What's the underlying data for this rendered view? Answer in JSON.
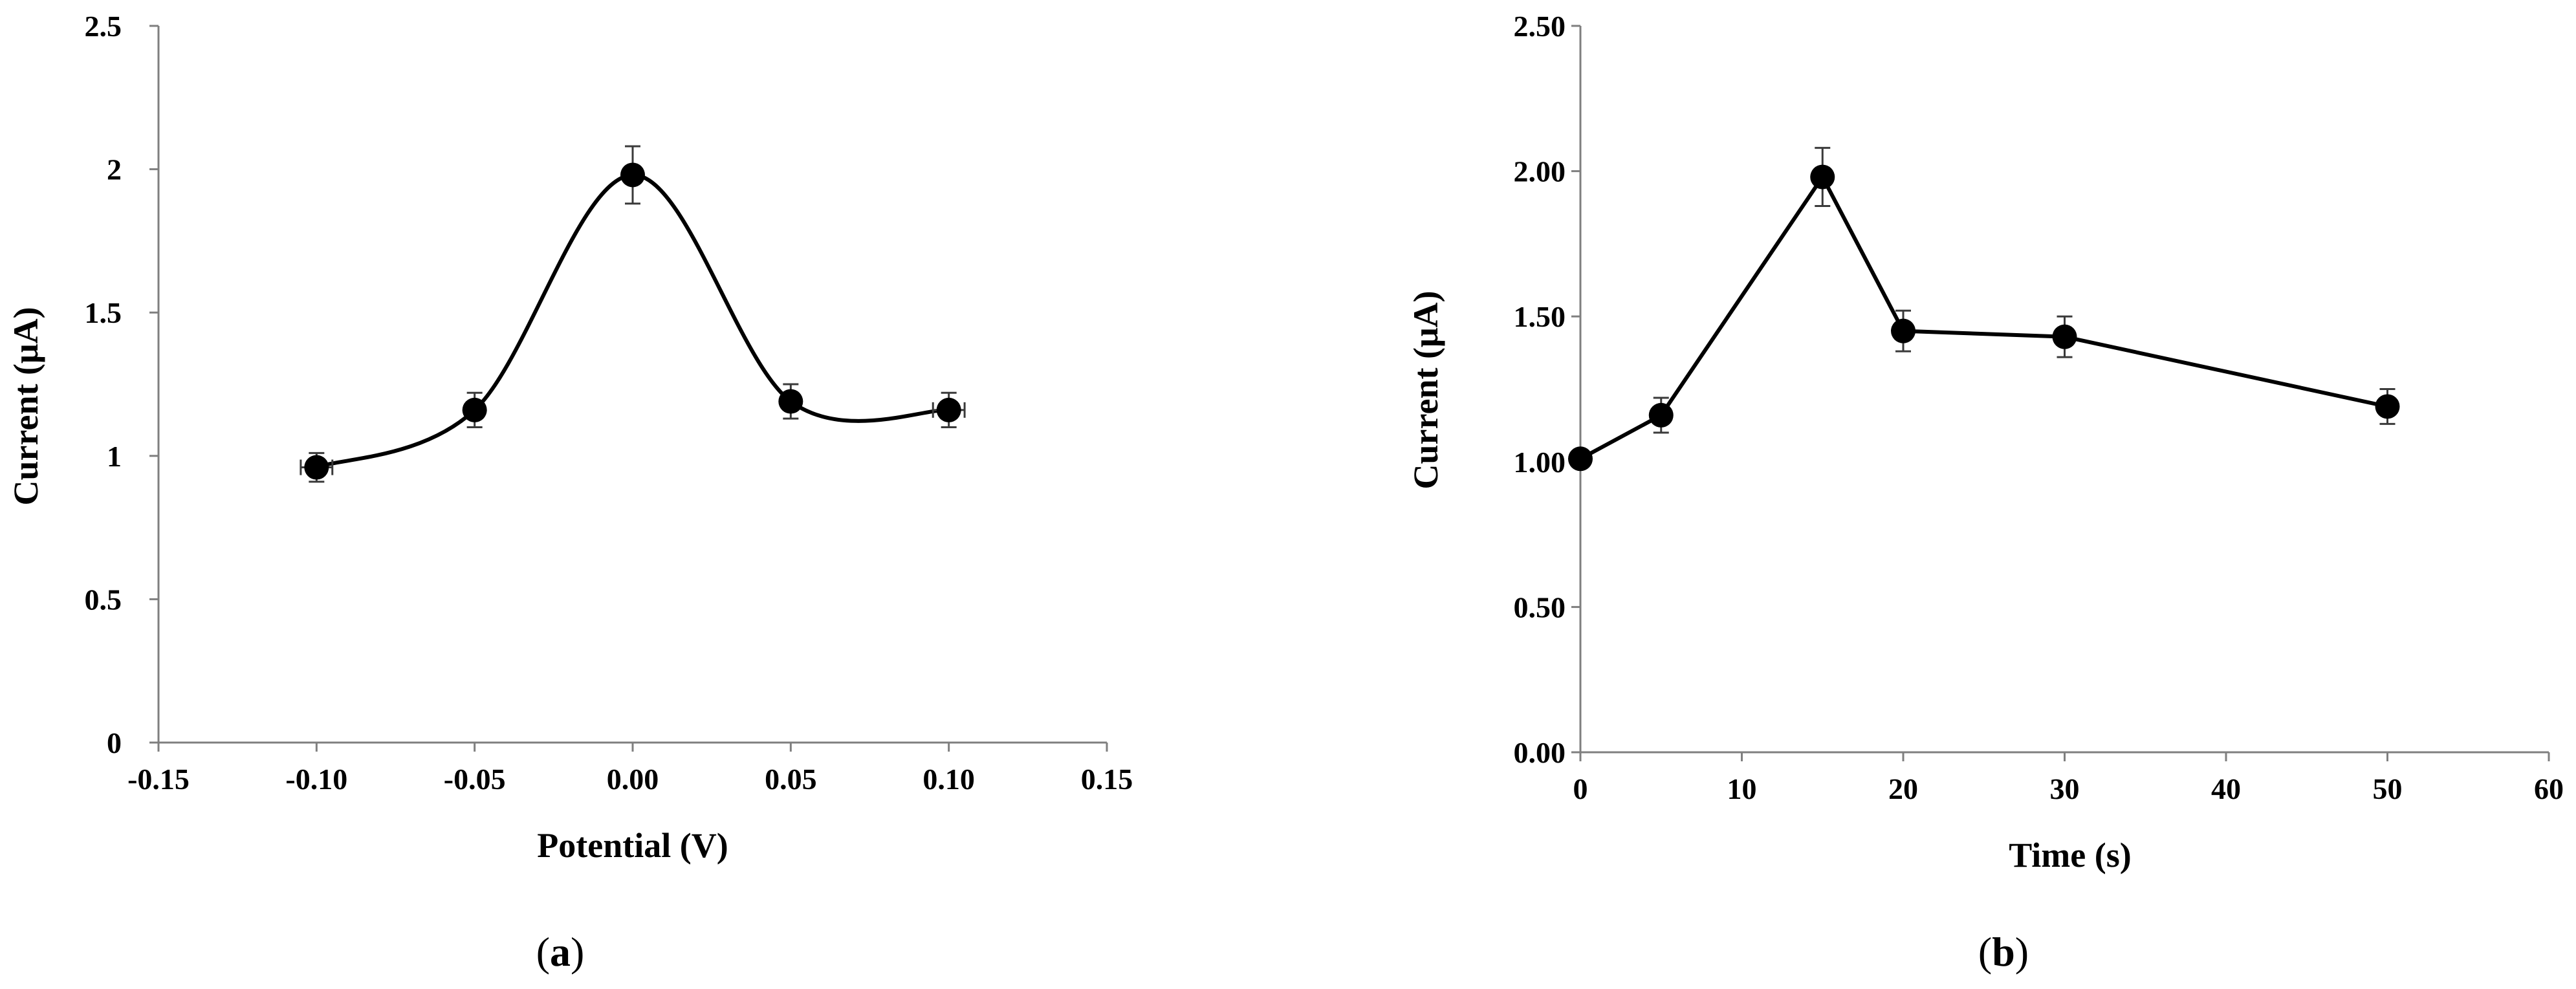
{
  "chart_data": [
    {
      "panel": "a",
      "type": "scatter",
      "line_style": "smooth",
      "xlabel": "Potential (V)",
      "ylabel": "Current (μA)",
      "xlim": [
        -0.15,
        0.15
      ],
      "ylim": [
        0,
        2.5
      ],
      "xticks": [
        -0.15,
        -0.1,
        -0.05,
        0.0,
        0.05,
        0.1,
        0.15
      ],
      "xtick_labels": [
        "-0.15",
        "-0.10",
        "-0.05",
        "0.00",
        "0.05",
        "0.10",
        "0.15"
      ],
      "yticks": [
        0,
        0.5,
        1,
        1.5,
        2,
        2.5
      ],
      "ytick_labels": [
        "0",
        "0.5",
        "1",
        "1.5",
        "2",
        "2.5"
      ],
      "x": [
        -0.1,
        -0.05,
        0.0,
        0.05,
        0.1
      ],
      "y": [
        0.96,
        1.16,
        1.98,
        1.19,
        1.16
      ],
      "y_error": [
        0.05,
        0.06,
        0.1,
        0.06,
        0.06
      ],
      "x_error": [
        0.005,
        0,
        0,
        0,
        0.005
      ],
      "grid": false,
      "legend": "none"
    },
    {
      "panel": "b",
      "type": "line",
      "line_style": "straight",
      "xlabel": "Time (s)",
      "ylabel": "Current (μA)",
      "xlim": [
        0,
        60
      ],
      "ylim": [
        0,
        2.5
      ],
      "xticks": [
        0,
        10,
        20,
        30,
        40,
        50,
        60
      ],
      "xtick_labels": [
        "0",
        "10",
        "20",
        "30",
        "40",
        "50",
        "60"
      ],
      "yticks": [
        0,
        0.5,
        1,
        1.5,
        2,
        2.5
      ],
      "ytick_labels": [
        "0.00",
        "0.50",
        "1.00",
        "1.50",
        "2.00",
        "2.50"
      ],
      "x": [
        0,
        5,
        15,
        20,
        30,
        50
      ],
      "y": [
        1.01,
        1.16,
        1.98,
        1.45,
        1.43,
        1.19
      ],
      "y_error": [
        0,
        0.06,
        0.1,
        0.07,
        0.07,
        0.06
      ],
      "x_error": [
        0,
        0,
        0,
        0,
        0,
        0
      ],
      "grid": false,
      "legend": "none"
    }
  ],
  "panel_labels": [
    {
      "open": "(",
      "letter": "a",
      "close": ")"
    },
    {
      "open": "(",
      "letter": "b",
      "close": ")"
    }
  ]
}
